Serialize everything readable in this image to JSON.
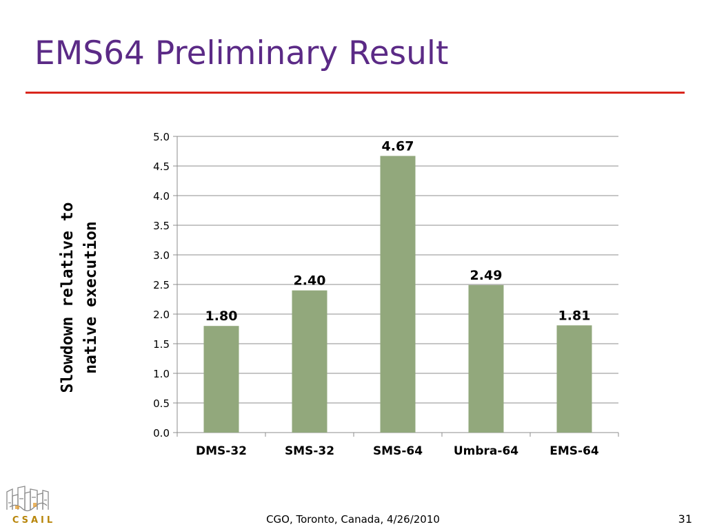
{
  "slide": {
    "title": "EMS64 Preliminary Result",
    "footer": "CGO, Toronto, Canada, 4/26/2010",
    "page_number": "31",
    "logo_text": "CSAIL"
  },
  "colors": {
    "title": "#5b2a86",
    "rule": "#d9261c",
    "bar": "#92a87c",
    "gridline": "#8c8c8c"
  },
  "chart_data": {
    "type": "bar",
    "categories": [
      "DMS-32",
      "SMS-32",
      "SMS-64",
      "Umbra-64",
      "EMS-64"
    ],
    "values": [
      1.8,
      2.4,
      4.67,
      2.49,
      1.81
    ],
    "data_labels": [
      "1.80",
      "2.40",
      "4.67",
      "2.49",
      "1.81"
    ],
    "ylabel_lines": [
      "Slowdown relative to",
      "native execution"
    ],
    "ylim": [
      0,
      5
    ],
    "yticks": [
      "0.0",
      "0.5",
      "1.0",
      "1.5",
      "2.0",
      "2.5",
      "3.0",
      "3.5",
      "4.0",
      "4.5",
      "5.0"
    ],
    "grid": true,
    "legend": "none"
  }
}
